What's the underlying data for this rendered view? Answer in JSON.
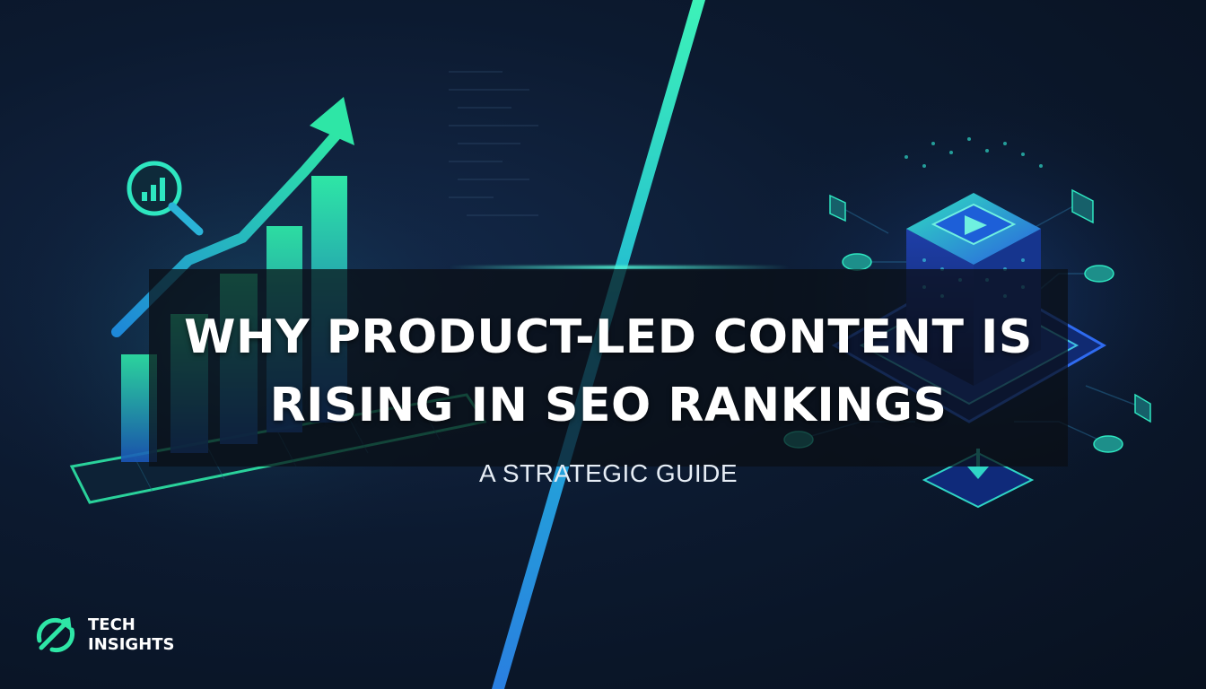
{
  "headline": {
    "line1": "WHY PRODUCT-LED CONTENT IS",
    "line2": "RISING IN SEO RANKINGS"
  },
  "subtitle": "A STRATEGIC GUIDE",
  "brand": {
    "line1": "TECH",
    "line2": "INSIGHTS"
  },
  "icons": [
    "trending-up-icon",
    "magnifier-chart-icon",
    "play-icon",
    "download-icon",
    "logo-arrows-icon"
  ],
  "colors": {
    "background": "#0c1a30",
    "accent_green": "#2ee6a6",
    "accent_teal": "#1fc8c0",
    "accent_blue": "#2d7be0",
    "text": "#ffffff"
  }
}
